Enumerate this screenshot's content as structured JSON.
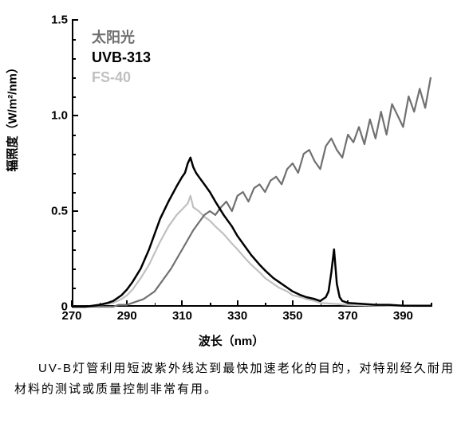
{
  "chart": {
    "type": "line",
    "xlabel": "波长（nm）",
    "ylabel": "辐照度（W/m²/nm）",
    "xlim": [
      270,
      400
    ],
    "ylim": [
      0,
      1.5
    ],
    "xtick_step": 20,
    "ytick_step": 0.5,
    "x_minor_step": 10,
    "y_minor_step": 0.1,
    "background_color": "#ffffff",
    "axis_color": "#000000",
    "legend_position": "top-left",
    "series": [
      {
        "name": "sunlight",
        "label": "太阳光",
        "color": "#707070",
        "line_width": 2.2,
        "x": [
          270,
          280,
          283,
          285,
          287,
          290,
          292,
          294,
          296,
          298,
          300,
          302,
          304,
          306,
          308,
          310,
          312,
          314,
          316,
          318,
          320,
          322,
          324,
          326,
          328,
          330,
          332,
          334,
          336,
          338,
          340,
          342,
          344,
          346,
          348,
          350,
          352,
          354,
          356,
          358,
          360,
          362,
          364,
          366,
          368,
          370,
          372,
          374,
          376,
          378,
          380,
          382,
          384,
          386,
          388,
          390,
          392,
          394,
          396,
          398,
          400
        ],
        "y": [
          0.0,
          0.0,
          0.0,
          0.0,
          0.01,
          0.01,
          0.02,
          0.03,
          0.04,
          0.06,
          0.08,
          0.12,
          0.16,
          0.2,
          0.25,
          0.3,
          0.35,
          0.4,
          0.44,
          0.48,
          0.5,
          0.48,
          0.52,
          0.55,
          0.5,
          0.58,
          0.6,
          0.55,
          0.62,
          0.64,
          0.6,
          0.66,
          0.68,
          0.64,
          0.72,
          0.75,
          0.7,
          0.8,
          0.82,
          0.76,
          0.72,
          0.84,
          0.88,
          0.82,
          0.78,
          0.9,
          0.86,
          0.94,
          0.85,
          0.98,
          0.88,
          1.02,
          0.9,
          1.06,
          1.0,
          0.94,
          1.1,
          1.02,
          1.14,
          1.04,
          1.2
        ]
      },
      {
        "name": "uvb313",
        "label": "UVB-313",
        "color": "#000000",
        "line_width": 2.5,
        "x": [
          270,
          275,
          280,
          283,
          285,
          288,
          290,
          292,
          295,
          298,
          300,
          302,
          305,
          308,
          310,
          311,
          312,
          313,
          314,
          315,
          316,
          318,
          320,
          322,
          325,
          328,
          330,
          333,
          335,
          338,
          340,
          343,
          345,
          348,
          350,
          353,
          355,
          358,
          360,
          361,
          362,
          363,
          364,
          365,
          366,
          367,
          368,
          370,
          375,
          380,
          385,
          390,
          395,
          400
        ],
        "y": [
          0.0,
          0.0,
          0.01,
          0.02,
          0.03,
          0.06,
          0.09,
          0.13,
          0.2,
          0.3,
          0.38,
          0.46,
          0.55,
          0.63,
          0.68,
          0.7,
          0.75,
          0.78,
          0.73,
          0.7,
          0.68,
          0.64,
          0.6,
          0.55,
          0.48,
          0.42,
          0.37,
          0.31,
          0.27,
          0.22,
          0.19,
          0.15,
          0.13,
          0.1,
          0.08,
          0.06,
          0.05,
          0.04,
          0.03,
          0.04,
          0.05,
          0.08,
          0.18,
          0.3,
          0.12,
          0.05,
          0.03,
          0.02,
          0.015,
          0.01,
          0.01,
          0.005,
          0.005,
          0.005
        ]
      },
      {
        "name": "fs40",
        "label": "FS-40",
        "color": "#c0c0c0",
        "line_width": 2.2,
        "x": [
          270,
          275,
          280,
          283,
          285,
          288,
          290,
          292,
          295,
          298,
          300,
          302,
          305,
          308,
          310,
          312,
          313,
          314,
          316,
          318,
          320,
          322,
          325,
          328,
          330,
          333,
          335,
          338,
          340,
          343,
          345,
          348,
          350,
          353,
          355,
          358,
          360,
          365,
          370,
          375,
          380,
          385,
          390,
          395,
          400
        ],
        "y": [
          0.0,
          0.0,
          0.01,
          0.015,
          0.02,
          0.04,
          0.06,
          0.09,
          0.15,
          0.22,
          0.28,
          0.34,
          0.42,
          0.48,
          0.51,
          0.54,
          0.58,
          0.52,
          0.5,
          0.47,
          0.45,
          0.42,
          0.38,
          0.33,
          0.3,
          0.25,
          0.22,
          0.18,
          0.15,
          0.12,
          0.1,
          0.08,
          0.06,
          0.05,
          0.04,
          0.03,
          0.02,
          0.015,
          0.01,
          0.008,
          0.006,
          0.005,
          0.004,
          0.003,
          0.003
        ]
      }
    ]
  },
  "caption": "UV-B灯管利用短波紫外线达到最快加速老化的目的，对特别经久耐用材料的测试或质量控制非常有用。"
}
